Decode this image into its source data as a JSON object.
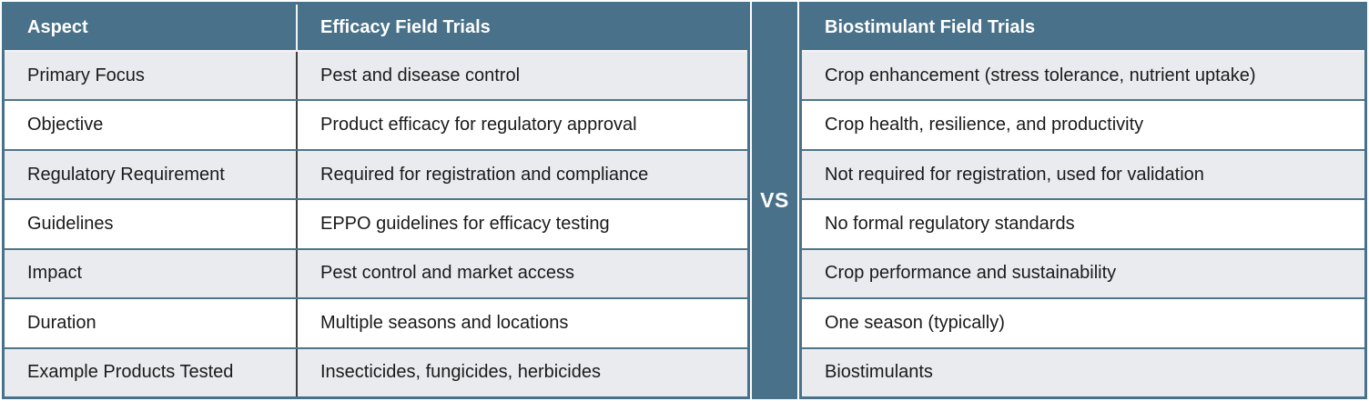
{
  "chart_data": {
    "type": "table",
    "columns": [
      "Aspect",
      "Efficacy Field Trials",
      "Biostimulant Field Trials"
    ],
    "rows": [
      {
        "aspect": "Primary Focus",
        "efficacy": "Pest and disease control",
        "biostimulant": "Crop enhancement (stress tolerance, nutrient uptake)"
      },
      {
        "aspect": "Objective",
        "efficacy": "Product efficacy for regulatory approval",
        "biostimulant": "Crop health, resilience, and productivity"
      },
      {
        "aspect": "Regulatory Requirement",
        "efficacy": "Required for registration and compliance",
        "biostimulant": "Not required for registration, used for validation"
      },
      {
        "aspect": "Guidelines",
        "efficacy": "EPPO guidelines for efficacy testing",
        "biostimulant": "No formal regulatory standards"
      },
      {
        "aspect": "Impact",
        "efficacy": "Pest control and market access",
        "biostimulant": "Crop performance and sustainability"
      },
      {
        "aspect": "Duration",
        "efficacy": "Multiple seasons and locations",
        "biostimulant": "One season (typically)"
      },
      {
        "aspect": "Example Products Tested",
        "efficacy": "Insecticides, fungicides, herbicides",
        "biostimulant": "Biostimulants"
      }
    ]
  },
  "divider": {
    "label": "VS"
  },
  "colors": {
    "header_bg": "#497189",
    "divider_bg": "#497189",
    "row_bg": "#ffffff",
    "row_alt_bg": "#e9ebee",
    "row_border": "#4f7589",
    "column_divider": "#3d3d3d",
    "header_text": "#ffffff",
    "body_text": "#1a1a1a"
  }
}
